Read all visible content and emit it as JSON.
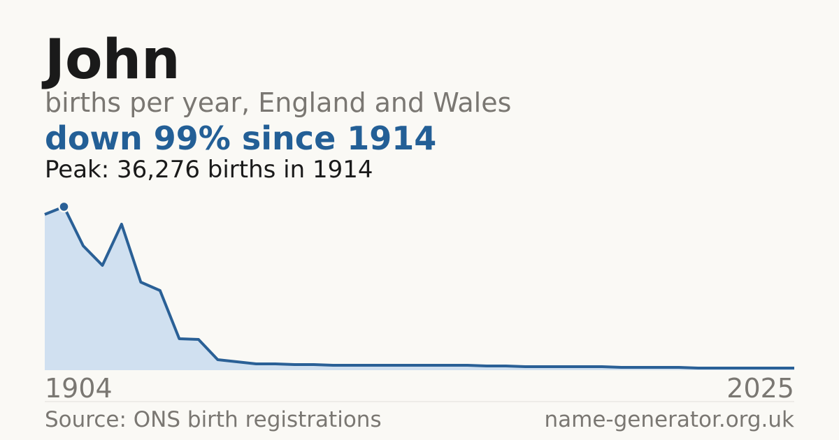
{
  "chart_data": {
    "type": "area",
    "title": "John",
    "subtitle": "births per year, England and Wales",
    "headline": "down 99% since 1914",
    "peak_note": "Peak: 36,276 births in 1914",
    "source": "Source: ONS birth registrations",
    "site": "name-generator.org.uk",
    "categories": [
      "1904",
      null,
      null,
      null,
      null,
      null,
      null,
      null,
      null,
      null,
      null,
      null,
      null,
      null,
      null,
      null,
      null,
      null,
      null,
      null,
      null,
      null,
      null,
      null,
      null,
      null,
      null,
      null,
      null,
      null,
      null,
      null,
      null,
      null,
      null,
      null,
      null,
      null,
      null,
      "2025"
    ],
    "series": [
      {
        "name": "John",
        "color": "#2a6096",
        "fill": "#d0e0f0",
        "values": [
          34570,
          36276,
          27590,
          23250,
          32400,
          19530,
          17670,
          6975,
          6820,
          2325,
          1860,
          1395,
          1395,
          1240,
          1240,
          1085,
          1085,
          1085,
          1085,
          1085,
          1085,
          1085,
          1085,
          930,
          930,
          775,
          775,
          775,
          775,
          775,
          620,
          620,
          620,
          620,
          465,
          465,
          465,
          465,
          465,
          465
        ]
      }
    ],
    "highlight_index": 1
  }
}
